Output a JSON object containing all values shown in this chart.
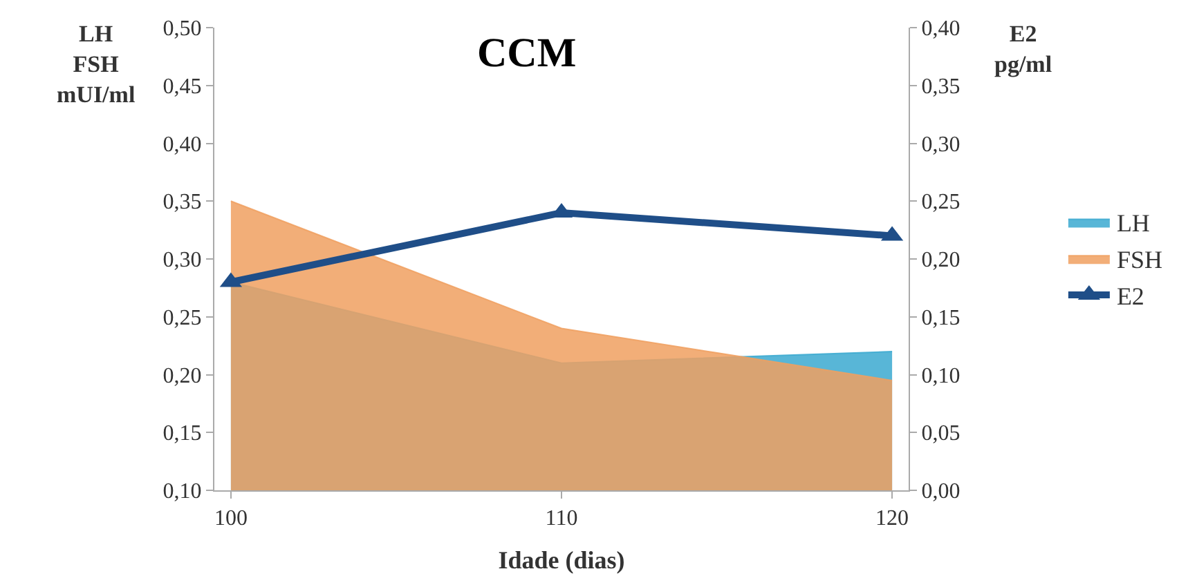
{
  "chart_data": {
    "type": "area",
    "title": "CCM",
    "xlabel": "Idade (dias)",
    "ylabel": "LH\nFSH\nmUI/ml",
    "y2label": "E2\npg/ml",
    "x": [
      100,
      110,
      120
    ],
    "series": [
      {
        "name": "LH",
        "color": "#3ba9d0",
        "values": [
          0.28,
          0.21,
          0.22
        ]
      },
      {
        "name": "FSH",
        "color": "#f0a060",
        "values": [
          0.35,
          0.24,
          0.195
        ]
      },
      {
        "name": "E2",
        "type": "line",
        "axis": "y2",
        "color": "#1f4e88",
        "marker": "triangle",
        "values": [
          0.18,
          0.24,
          0.22
        ]
      }
    ],
    "xlim": [
      99.5,
      120.5
    ],
    "xticks": [
      100,
      110,
      120
    ],
    "ylim": [
      0.1,
      0.5
    ],
    "yticks": [
      {
        "value": 0.1,
        "label": "0,10"
      },
      {
        "value": 0.15,
        "label": "0,15"
      },
      {
        "value": 0.2,
        "label": "0,20"
      },
      {
        "value": 0.25,
        "label": "0,25"
      },
      {
        "value": 0.3,
        "label": "0,30"
      },
      {
        "value": 0.35,
        "label": "0,35"
      },
      {
        "value": 0.4,
        "label": "0,40"
      },
      {
        "value": 0.45,
        "label": "0,45"
      },
      {
        "value": 0.5,
        "label": "0,50"
      }
    ],
    "y2lim": [
      0,
      0.4
    ],
    "y2ticks": [
      {
        "value": 0,
        "label": "0,00"
      },
      {
        "value": 0.05,
        "label": "0,05"
      },
      {
        "value": 0.1,
        "label": "0,10"
      },
      {
        "value": 0.15,
        "label": "0,15"
      },
      {
        "value": 0.2,
        "label": "0,20"
      },
      {
        "value": 0.25,
        "label": "0,25"
      },
      {
        "value": 0.3,
        "label": "0,30"
      },
      {
        "value": 0.35,
        "label": "0,35"
      },
      {
        "value": 0.4,
        "label": "0,40"
      }
    ],
    "legend": "right"
  }
}
